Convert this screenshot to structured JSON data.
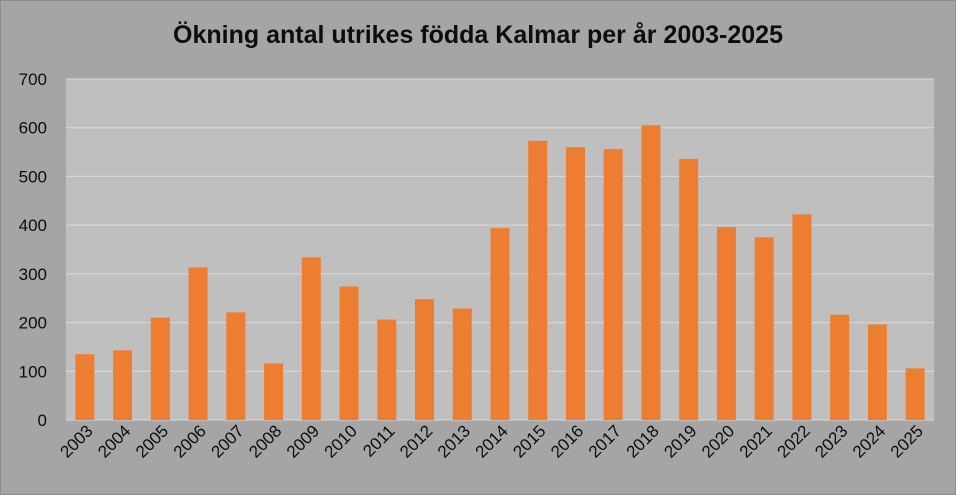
{
  "chart_data": {
    "type": "bar",
    "title": "Ökning antal utrikes födda Kalmar per år 2003-2025",
    "xlabel": "",
    "ylabel": "",
    "categories": [
      "2003",
      "2004",
      "2005",
      "2006",
      "2007",
      "2008",
      "2009",
      "2010",
      "2011",
      "2012",
      "2013",
      "2014",
      "2015",
      "2016",
      "2017",
      "2018",
      "2019",
      "2020",
      "2021",
      "2022",
      "2023",
      "2024",
      "2025"
    ],
    "values": [
      135,
      143,
      210,
      313,
      221,
      116,
      334,
      274,
      206,
      248,
      229,
      394,
      573,
      560,
      556,
      605,
      536,
      396,
      375,
      422,
      216,
      196,
      106
    ],
    "ylim": [
      0,
      700
    ],
    "yticks": [
      0,
      100,
      200,
      300,
      400,
      500,
      600,
      700
    ],
    "grid": true,
    "legend": "none",
    "colors": {
      "bar": "#ed7d31",
      "plot_background": "#bfbfbf",
      "chart_background": "#a5a5a5",
      "gridline": "#d9d9d9"
    }
  }
}
